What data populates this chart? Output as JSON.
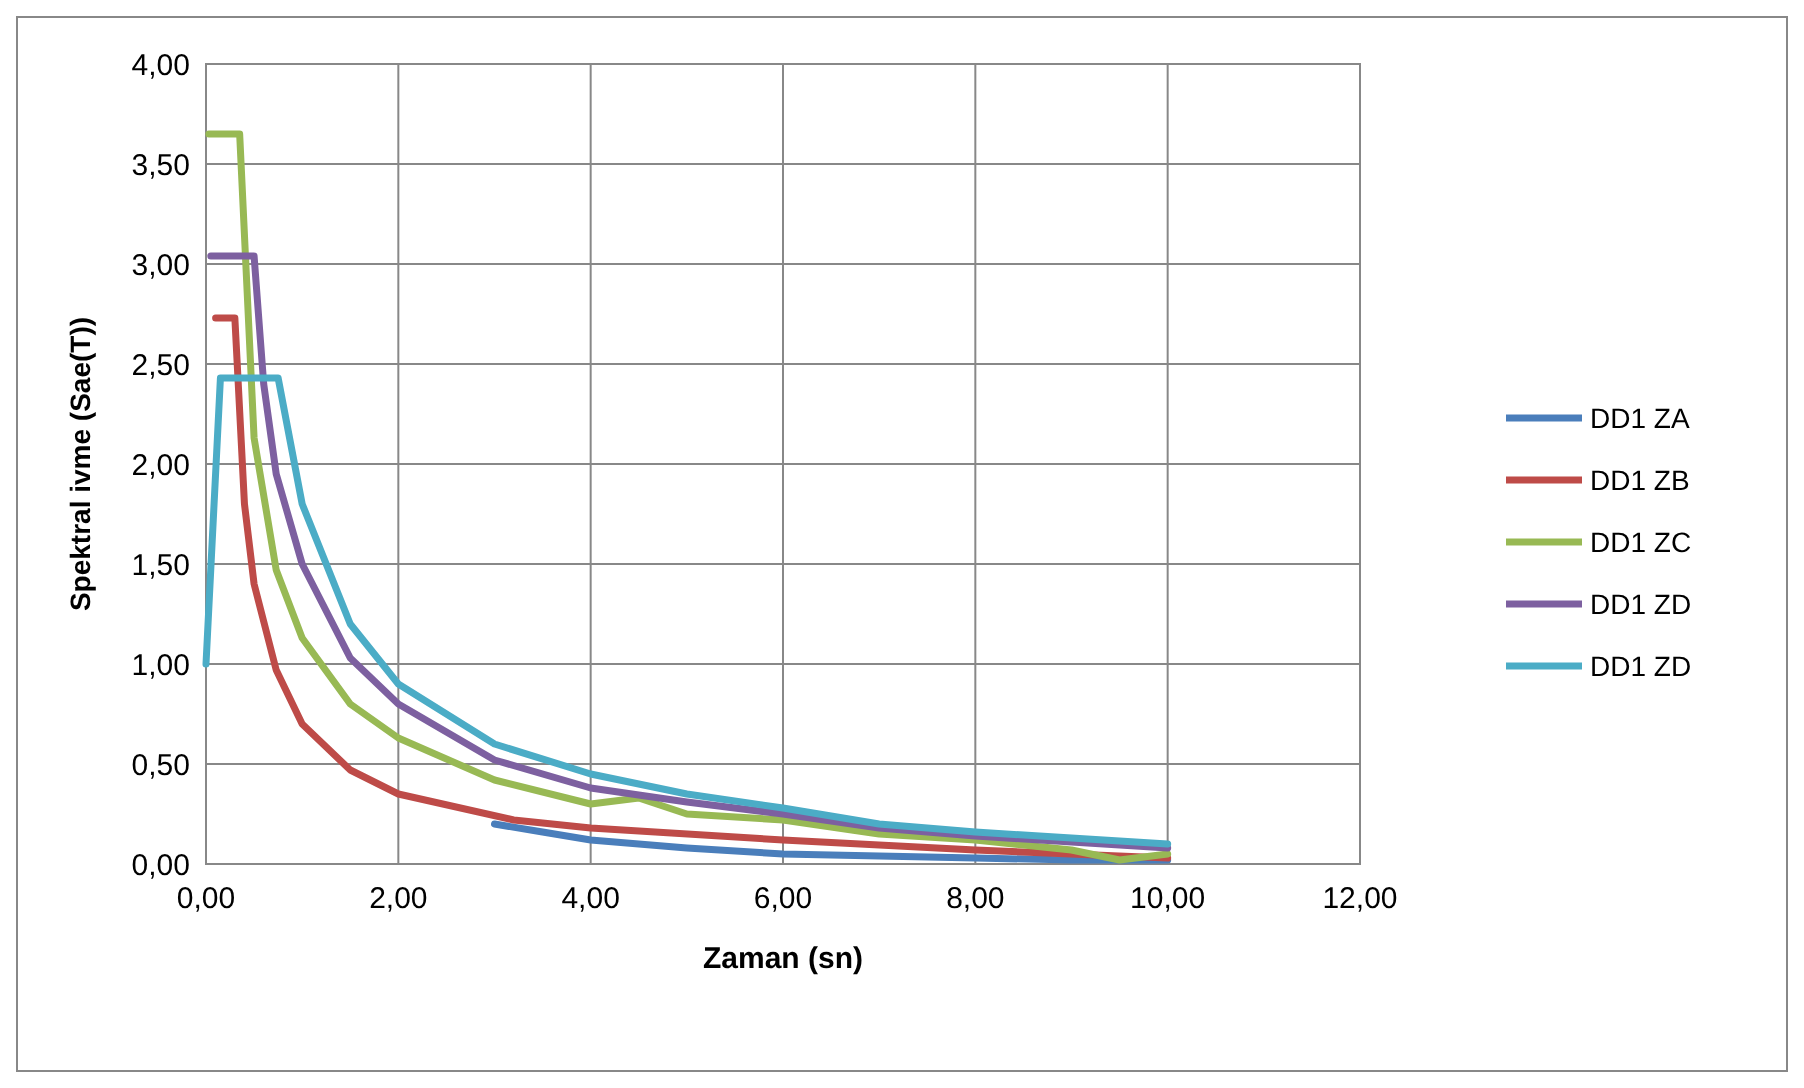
{
  "chart_data": {
    "type": "line",
    "xlabel": "Zaman (sn)",
    "ylabel": "Spektral ivme (Sae(T))",
    "xlim": [
      0,
      12
    ],
    "xticks": [
      {
        "value": 0,
        "label": "0,00"
      },
      {
        "value": 2,
        "label": "2,00"
      },
      {
        "value": 4,
        "label": "4,00"
      },
      {
        "value": 6,
        "label": "6,00"
      },
      {
        "value": 8,
        "label": "8,00"
      },
      {
        "value": 10,
        "label": "10,00"
      },
      {
        "value": 12,
        "label": "12,00"
      }
    ],
    "ylim": [
      0,
      4
    ],
    "yticks": [
      {
        "value": 0,
        "label": "0,00"
      },
      {
        "value": 0.5,
        "label": "0,50"
      },
      {
        "value": 1,
        "label": "1,00"
      },
      {
        "value": 1.5,
        "label": "1,50"
      },
      {
        "value": 2,
        "label": "2,00"
      },
      {
        "value": 2.5,
        "label": "2,50"
      },
      {
        "value": 3,
        "label": "3,00"
      },
      {
        "value": 3.5,
        "label": "3,50"
      },
      {
        "value": 4,
        "label": "4,00"
      }
    ],
    "grid": true,
    "legend": "right",
    "line_style": "solid",
    "series": [
      {
        "name": "DD1 ZA",
        "color": "#4a7ebb",
        "x": [
          3,
          3.5,
          4,
          5,
          6,
          7,
          8,
          9,
          10
        ],
        "values": [
          0.2,
          0.16,
          0.12,
          0.08,
          0.05,
          0.04,
          0.03,
          0.02,
          0.02
        ]
      },
      {
        "name": "DD1 ZB",
        "color": "#be4b48",
        "x": [
          0.1,
          0.3,
          0.4,
          0.5,
          0.73,
          1,
          1.5,
          2,
          3.2,
          4,
          6,
          8,
          10
        ],
        "values": [
          2.73,
          2.73,
          1.8,
          1.4,
          0.97,
          0.7,
          0.47,
          0.35,
          0.22,
          0.18,
          0.12,
          0.07,
          0.03
        ]
      },
      {
        "name": "DD1 ZC",
        "color": "#98b954",
        "x": [
          0.03,
          0.35,
          0.5,
          0.73,
          1,
          1.5,
          2,
          3,
          4,
          4.5,
          5,
          6,
          7,
          8,
          9,
          9.5,
          10
        ],
        "values": [
          3.65,
          3.65,
          2.13,
          1.47,
          1.13,
          0.8,
          0.63,
          0.42,
          0.3,
          0.33,
          0.25,
          0.22,
          0.15,
          0.12,
          0.07,
          0.02,
          0.05
        ]
      },
      {
        "name": "DD1 ZD",
        "color": "#7d60a0",
        "x": [
          0.05,
          0.5,
          0.6,
          0.73,
          1,
          1.5,
          2,
          3,
          4,
          5,
          6,
          7,
          8,
          9,
          10
        ],
        "values": [
          3.04,
          3.04,
          2.4,
          1.95,
          1.5,
          1.03,
          0.8,
          0.52,
          0.38,
          0.31,
          0.25,
          0.18,
          0.14,
          0.11,
          0.08
        ]
      },
      {
        "name": "DD1 ZD",
        "color": "#4bacc6",
        "x": [
          0,
          0.15,
          0.75,
          1,
          1.5,
          2,
          3,
          4,
          5,
          6,
          7,
          8,
          9,
          10
        ],
        "values": [
          1,
          2.43,
          2.43,
          1.8,
          1.2,
          0.9,
          0.6,
          0.45,
          0.35,
          0.28,
          0.2,
          0.16,
          0.13,
          0.1
        ]
      }
    ]
  }
}
